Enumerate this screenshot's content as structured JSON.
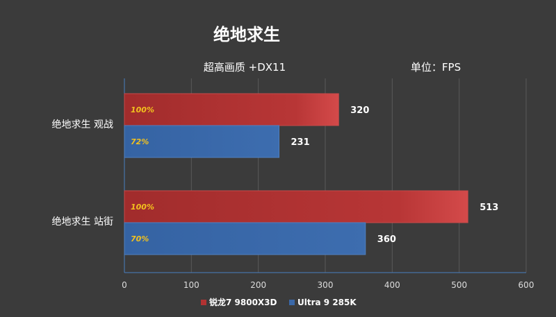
{
  "chart_data": {
    "type": "bar",
    "orientation": "horizontal",
    "title": "绝地求生",
    "subtitles": [
      "超高画质 +DX11",
      "单位：FPS"
    ],
    "categories": [
      "绝地求生 观战",
      "绝地求生 站街"
    ],
    "series": [
      {
        "name": "锐龙7 9800X3D",
        "color": "#b23232",
        "values": [
          320,
          513
        ],
        "percent_labels": [
          "100%",
          "100%"
        ]
      },
      {
        "name": "Ultra 9 285K",
        "color": "#3a68a8",
        "values": [
          231,
          360
        ],
        "percent_labels": [
          "72%",
          "70%"
        ]
      }
    ],
    "xlim": [
      0,
      600
    ],
    "xticks": [
      "0",
      "100",
      "200",
      "300",
      "400",
      "500",
      "600"
    ],
    "grid": true,
    "legend": "bottom"
  }
}
